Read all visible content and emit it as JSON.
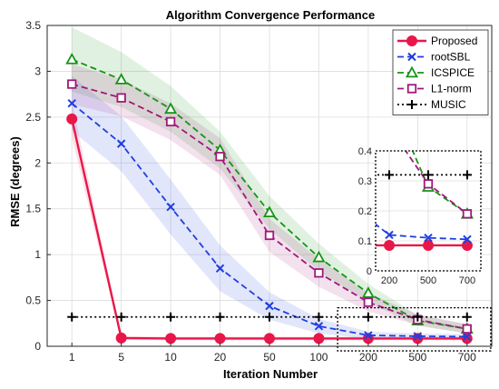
{
  "chart_data": {
    "type": "line",
    "title": "Algorithm Convergence Performance",
    "xlabel": "Iteration Number",
    "ylabel": "RMSE (degrees)",
    "categories": [
      "1",
      "5",
      "10",
      "20",
      "50",
      "100",
      "200",
      "500",
      "700"
    ],
    "ylim": [
      0,
      3.5
    ],
    "yticks": [
      "0",
      "0.5",
      "1",
      "1.5",
      "2",
      "2.5",
      "3",
      "3.5"
    ],
    "grid": true,
    "legend_position": "top-right",
    "series": [
      {
        "name": "Proposed",
        "color": "#e8174a",
        "marker": "circle",
        "dash": "solid",
        "values": [
          2.48,
          0.09,
          0.085,
          0.085,
          0.085,
          0.085,
          0.085,
          0.085,
          0.085
        ],
        "band": [
          0.2,
          0.02,
          0.02,
          0.02,
          0.02,
          0.02,
          0.02,
          0.02,
          0.02
        ]
      },
      {
        "name": "rootSBL",
        "color": "#1f3fe0",
        "marker": "x",
        "dash": "dashed",
        "values": [
          2.65,
          2.21,
          1.52,
          0.85,
          0.44,
          0.22,
          0.12,
          0.11,
          0.105
        ],
        "band": [
          0.3,
          0.3,
          0.3,
          0.25,
          0.15,
          0.08,
          0.04,
          0.03,
          0.03
        ]
      },
      {
        "name": "ICSPICE",
        "color": "#169416",
        "marker": "triangle",
        "dash": "dashed",
        "values": [
          3.13,
          2.91,
          2.59,
          2.14,
          1.46,
          0.97,
          0.58,
          0.28,
          0.19
        ],
        "band": [
          0.35,
          0.3,
          0.25,
          0.2,
          0.18,
          0.15,
          0.1,
          0.06,
          0.05
        ]
      },
      {
        "name": "L1-norm",
        "color": "#a0187c",
        "marker": "square",
        "dash": "dashed",
        "values": [
          2.86,
          2.71,
          2.45,
          2.07,
          1.21,
          0.8,
          0.48,
          0.29,
          0.19
        ],
        "band": [
          0.22,
          0.2,
          0.2,
          0.2,
          0.18,
          0.15,
          0.1,
          0.06,
          0.05
        ]
      },
      {
        "name": "MUSIC",
        "color": "#000000",
        "marker": "plus",
        "dash": "dotted",
        "values": [
          0.32,
          0.32,
          0.32,
          0.32,
          0.32,
          0.32,
          0.32,
          0.32,
          0.32
        ],
        "band": [
          0,
          0,
          0,
          0,
          0,
          0,
          0,
          0,
          0
        ]
      }
    ],
    "inset": {
      "categories": [
        "200",
        "500",
        "700"
      ],
      "ylim": [
        0,
        0.4
      ],
      "yticks": [
        "0",
        "0.1",
        "0.2",
        "0.3",
        "0.4"
      ]
    }
  }
}
